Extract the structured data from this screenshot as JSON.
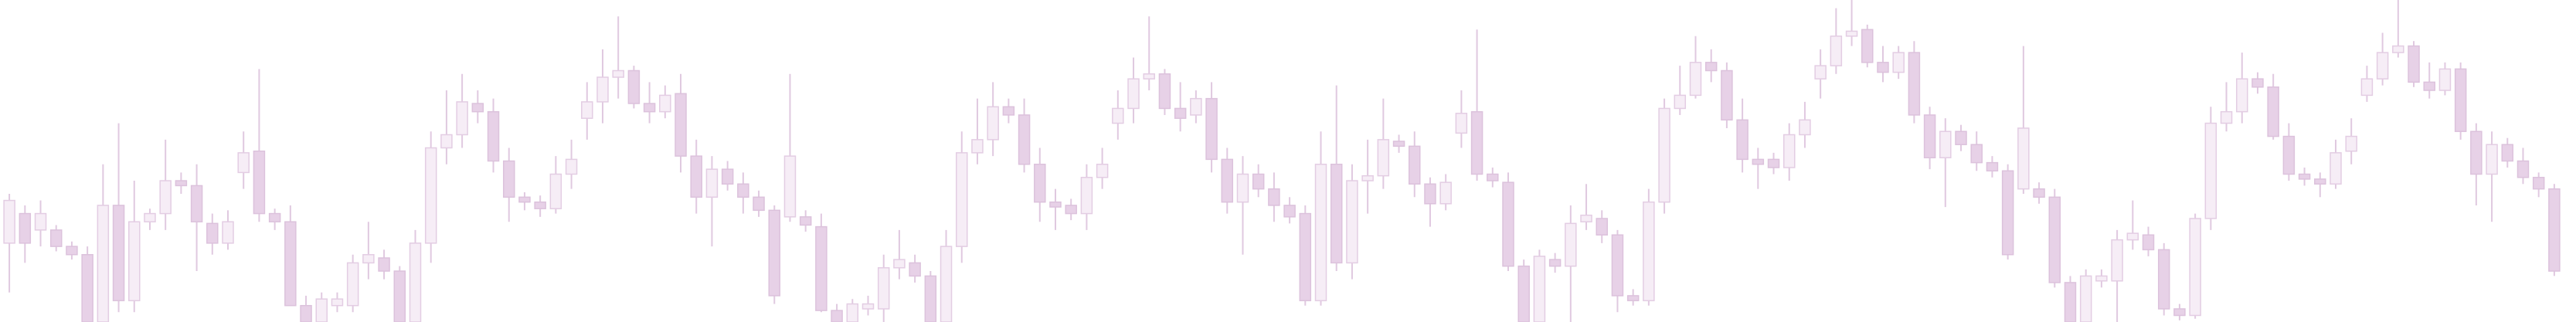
{
  "chart_data": {
    "type": "candlestick",
    "up_color": "#f6edf6",
    "up_border": "#e3cde3",
    "down_color": "#e7d1e7",
    "down_border": "#dcc2dc",
    "wick_color": "#e0c9e0",
    "ylim": [
      0,
      196
    ],
    "open": [
      48,
      66,
      56,
      56,
      46,
      41,
      0,
      71,
      13,
      61,
      66,
      86,
      83,
      60,
      48,
      91,
      104,
      66,
      61,
      10,
      0,
      10,
      10,
      36,
      39,
      31,
      0,
      48,
      106,
      114,
      133,
      128,
      98,
      76,
      73,
      69,
      90,
      124,
      134,
      149,
      153,
      133,
      128,
      139,
      101,
      76,
      93,
      84,
      76,
      68,
      64,
      64,
      58,
      7,
      0,
      8,
      8,
      33,
      36,
      28,
      0,
      46,
      103,
      111,
      131,
      126,
      96,
      73,
      71,
      66,
      88,
      121,
      130,
      148,
      151,
      130,
      126,
      136,
      99,
      73,
      90,
      81,
      71,
      66,
      13,
      96,
      36,
      86,
      89,
      110,
      107,
      84,
      72,
      115,
      128,
      90,
      85,
      34,
      0,
      38,
      34,
      61,
      63,
      53,
      16,
      13,
      73,
      130,
      138,
      158,
      153,
      123,
      99,
      99,
      94,
      114,
      148,
      156,
      174,
      178,
      158,
      152,
      164,
      126,
      100,
      116,
      108,
      97,
      92,
      81,
      81,
      76,
      24,
      0,
      25,
      25,
      50,
      53,
      44,
      8,
      4,
      63,
      121,
      128,
      148,
      143,
      113,
      90,
      87,
      84,
      104,
      138,
      148,
      164,
      168,
      146,
      141,
      154,
      116,
      90,
      108,
      98,
      88,
      81
    ],
    "close": [
      74,
      48,
      66,
      46,
      41,
      0,
      71,
      13,
      61,
      66,
      86,
      83,
      61,
      48,
      61,
      103,
      66,
      61,
      10,
      0,
      14,
      14,
      36,
      41,
      31,
      0,
      48,
      106,
      114,
      134,
      128,
      98,
      76,
      73,
      69,
      90,
      99,
      134,
      149,
      153,
      133,
      128,
      138,
      101,
      76,
      93,
      84,
      76,
      68,
      16,
      101,
      59,
      7,
      0,
      11,
      11,
      33,
      38,
      28,
      0,
      46,
      103,
      111,
      131,
      126,
      96,
      73,
      70,
      66,
      88,
      96,
      130,
      148,
      151,
      130,
      124,
      136,
      99,
      73,
      90,
      81,
      71,
      64,
      13,
      96,
      36,
      86,
      89,
      111,
      107,
      84,
      72,
      85,
      127,
      90,
      86,
      34,
      0,
      40,
      34,
      60,
      65,
      53,
      16,
      13,
      73,
      130,
      138,
      158,
      153,
      123,
      99,
      96,
      94,
      114,
      123,
      156,
      174,
      177,
      158,
      152,
      164,
      126,
      100,
      116,
      108,
      97,
      92,
      41,
      118,
      76,
      24,
      0,
      28,
      28,
      50,
      54,
      44,
      8,
      4,
      63,
      121,
      128,
      148,
      143,
      113,
      90,
      87,
      84,
      103,
      113,
      148,
      164,
      168,
      146,
      141,
      154,
      116,
      90,
      108,
      98,
      88,
      81,
      31
    ],
    "high": [
      78,
      71,
      74,
      59,
      49,
      46,
      96,
      121,
      86,
      69,
      111,
      91,
      96,
      66,
      68,
      116,
      154,
      69,
      71,
      16,
      18,
      18,
      41,
      61,
      44,
      34,
      56,
      116,
      141,
      151,
      141,
      136,
      106,
      79,
      77,
      101,
      111,
      146,
      166,
      186,
      156,
      146,
      144,
      151,
      111,
      101,
      98,
      91,
      80,
      71,
      151,
      68,
      66,
      11,
      14,
      16,
      41,
      56,
      41,
      31,
      56,
      116,
      136,
      146,
      136,
      136,
      106,
      81,
      75,
      96,
      106,
      141,
      161,
      186,
      154,
      146,
      141,
      146,
      106,
      101,
      96,
      91,
      76,
      71,
      116,
      144,
      96,
      111,
      136,
      114,
      116,
      88,
      90,
      141,
      178,
      94,
      91,
      38,
      44,
      42,
      71,
      84,
      68,
      56,
      20,
      81,
      136,
      156,
      174,
      166,
      158,
      136,
      106,
      103,
      121,
      134,
      166,
      191,
      196,
      181,
      168,
      168,
      171,
      131,
      124,
      120,
      116,
      101,
      96,
      168,
      85,
      81,
      28,
      32,
      32,
      56,
      74,
      58,
      48,
      11,
      66,
      131,
      146,
      164,
      152,
      151,
      121,
      94,
      91,
      111,
      124,
      156,
      176,
      196,
      171,
      158,
      158,
      158,
      121,
      116,
      112,
      106,
      91,
      84
    ],
    "low": [
      18,
      36,
      46,
      43,
      38,
      0,
      0,
      6,
      6,
      56,
      56,
      78,
      31,
      41,
      44,
      81,
      61,
      56,
      10,
      0,
      0,
      6,
      6,
      26,
      26,
      0,
      0,
      36,
      96,
      106,
      121,
      91,
      61,
      68,
      64,
      66,
      81,
      111,
      121,
      136,
      130,
      121,
      124,
      91,
      66,
      46,
      80,
      66,
      64,
      11,
      61,
      55,
      6,
      0,
      0,
      4,
      0,
      26,
      24,
      0,
      0,
      36,
      96,
      101,
      121,
      91,
      61,
      56,
      62,
      56,
      81,
      111,
      121,
      141,
      126,
      116,
      121,
      91,
      66,
      41,
      76,
      61,
      60,
      10,
      10,
      31,
      26,
      66,
      81,
      103,
      76,
      58,
      68,
      106,
      86,
      82,
      31,
      0,
      0,
      30,
      0,
      56,
      48,
      6,
      10,
      10,
      66,
      126,
      136,
      146,
      118,
      91,
      81,
      90,
      86,
      106,
      136,
      151,
      168,
      155,
      146,
      148,
      121,
      93,
      70,
      104,
      92,
      88,
      38,
      78,
      72,
      21,
      0,
      0,
      21,
      0,
      44,
      40,
      4,
      1,
      2,
      56,
      116,
      121,
      139,
      111,
      86,
      83,
      76,
      81,
      96,
      134,
      144,
      161,
      143,
      136,
      138,
      111,
      71,
      61,
      94,
      84,
      76,
      28
    ]
  }
}
